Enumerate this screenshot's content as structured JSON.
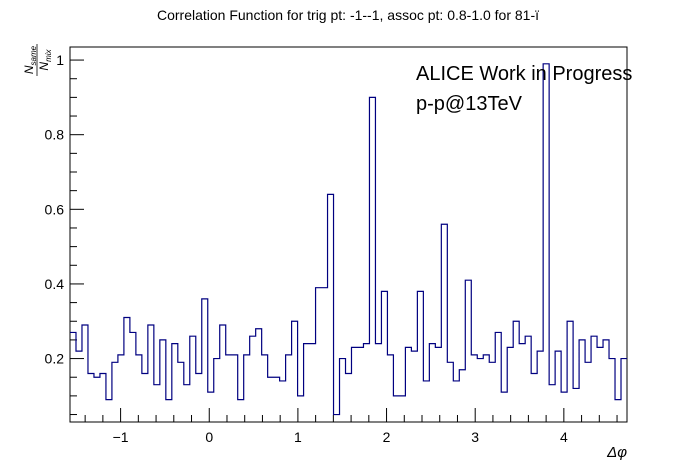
{
  "chart_data": {
    "type": "step",
    "title": "Correlation Function for trig pt: -1--1, assoc pt: 0.8-1.0 for 81-ï",
    "xlabel": "Δφ",
    "ylabel": {
      "num": "N",
      "num_sub": "same",
      "den": "N",
      "den_sub": "mix"
    },
    "xlim": [
      -1.5708,
      4.7124
    ],
    "ylim": [
      0.03,
      1.035
    ],
    "x_ticks": [
      -1,
      0,
      1,
      2,
      3,
      4
    ],
    "x_tick_labels": [
      "−1",
      "0",
      "1",
      "2",
      "3",
      "4"
    ],
    "y_ticks": [
      0.2,
      0.4,
      0.6,
      0.8,
      1.0
    ],
    "y_tick_labels": [
      "0.2",
      "0.4",
      "0.6",
      "0.8",
      "1"
    ],
    "annotations": [
      "ALICE Work in Progress",
      "p-p@13TeV"
    ],
    "line_color": "#000080",
    "series": [
      {
        "values": [
          0.27,
          0.22,
          0.29,
          0.16,
          0.15,
          0.16,
          0.09,
          0.19,
          0.21,
          0.31,
          0.27,
          0.21,
          0.16,
          0.29,
          0.13,
          0.25,
          0.09,
          0.24,
          0.19,
          0.13,
          0.26,
          0.16,
          0.36,
          0.11,
          0.2,
          0.29,
          0.21,
          0.21,
          0.09,
          0.21,
          0.26,
          0.28,
          0.21,
          0.15,
          0.15,
          0.14,
          0.21,
          0.3,
          0.1,
          0.24,
          0.24,
          0.39,
          0.39,
          0.64,
          0.05,
          0.2,
          0.16,
          0.23,
          0.23,
          0.24,
          0.9,
          0.24,
          0.38,
          0.21,
          0.1,
          0.1,
          0.23,
          0.22,
          0.38,
          0.14,
          0.24,
          0.23,
          0.56,
          0.19,
          0.14,
          0.17,
          0.41,
          0.21,
          0.2,
          0.21,
          0.19,
          0.27,
          0.11,
          0.23,
          0.3,
          0.24,
          0.26,
          0.16,
          0.22,
          0.99,
          0.13,
          0.22,
          0.11,
          0.3,
          0.12,
          0.25,
          0.19,
          0.26,
          0.23,
          0.25,
          0.2,
          0.09,
          0.2
        ]
      }
    ]
  }
}
